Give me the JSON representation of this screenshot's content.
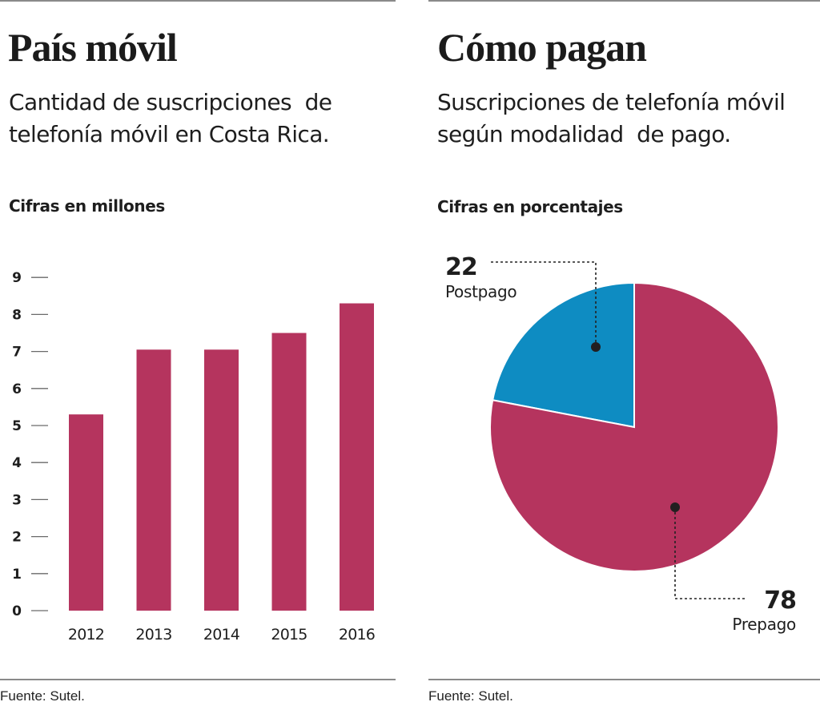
{
  "chart_data": [
    {
      "type": "bar",
      "title": "País móvil",
      "subtitle": "Cantidad de suscripciones de telefonía móvil en Costa Rica.",
      "units_label": "Cifras en millones",
      "categories": [
        "2012",
        "2013",
        "2014",
        "2015",
        "2016"
      ],
      "values": [
        5.3,
        7.05,
        7.05,
        7.5,
        8.3
      ],
      "xlabel": "",
      "ylabel": "",
      "ylim": [
        0,
        9
      ],
      "yticks": [
        0,
        1,
        2,
        3,
        4,
        5,
        6,
        7,
        8,
        9
      ],
      "grid": false,
      "color": "#B5345E",
      "source": "Fuente: Sutel."
    },
    {
      "type": "pie",
      "title": "Cómo pagan",
      "subtitle": "Suscripciones de telefonía móvil según modalidad de pago.",
      "units_label": "Cifras en porcentajes",
      "slices": [
        {
          "label": "Postpago",
          "value": 22,
          "color": "#0E8CC2"
        },
        {
          "label": "Prepago",
          "value": 78,
          "color": "#B5345E"
        }
      ],
      "source": "Fuente: Sutel."
    }
  ],
  "left": {
    "title": "País móvil",
    "subtitle_lines": [
      "Cantidad de suscripciones  de",
      "telefonía móvil en Costa Rica."
    ],
    "units": "Cifras en millones",
    "source": "Fuente: Sutel."
  },
  "right": {
    "title": "Cómo pagan",
    "subtitle_lines": [
      "Suscripciones de telefonía móvil",
      "según modalidad  de pago."
    ],
    "units": "Cifras en porcentajes",
    "source": "Fuente: Sutel."
  }
}
